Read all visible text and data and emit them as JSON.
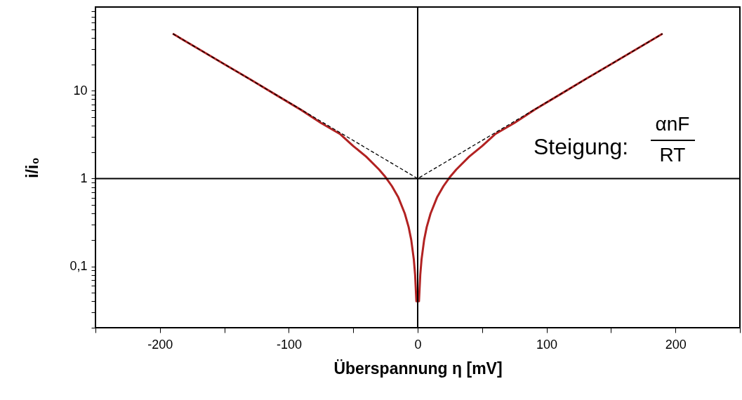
{
  "chart_data": {
    "type": "line",
    "xlabel": "Überspannung η [mV]",
    "ylabel": "i/i₀",
    "log": "y",
    "grid": false,
    "marker": "none",
    "xlim": [
      -250,
      250
    ],
    "xticks": [
      {
        "value": -250,
        "label": null
      },
      -200,
      {
        "value": -150,
        "label": null
      },
      -100,
      {
        "value": -50,
        "label": null
      },
      0,
      {
        "value": 50,
        "label": null
      },
      100,
      {
        "value": 150,
        "label": null
      },
      200,
      {
        "value": 250,
        "label": null
      }
    ],
    "ylim": [
      0.02,
      90
    ],
    "yticks": [
      {
        "value": 0.02,
        "label": null
      },
      {
        "value": 0.03,
        "label": null
      },
      {
        "value": 0.04,
        "label": null
      },
      {
        "value": 0.05,
        "label": null
      },
      {
        "value": 0.06,
        "label": null
      },
      {
        "value": 0.07,
        "label": null
      },
      {
        "value": 0.08,
        "label": null
      },
      {
        "value": 0.09,
        "label": null
      },
      {
        "value": 0.1,
        "label": "0,1"
      },
      {
        "value": 0.2,
        "label": null
      },
      {
        "value": 0.3,
        "label": null
      },
      {
        "value": 0.4,
        "label": null
      },
      {
        "value": 0.5,
        "label": null
      },
      {
        "value": 0.6,
        "label": null
      },
      {
        "value": 0.7,
        "label": null
      },
      {
        "value": 0.8,
        "label": null
      },
      {
        "value": 0.9,
        "label": null
      },
      1,
      {
        "value": 2,
        "label": null
      },
      {
        "value": 3,
        "label": null
      },
      {
        "value": 4,
        "label": null
      },
      {
        "value": 5,
        "label": null
      },
      {
        "value": 6,
        "label": null
      },
      {
        "value": 7,
        "label": null
      },
      {
        "value": 8,
        "label": null
      },
      {
        "value": 9,
        "label": null
      },
      10,
      {
        "value": 20,
        "label": null
      },
      {
        "value": 30,
        "label": null
      },
      {
        "value": 40,
        "label": null
      },
      {
        "value": 50,
        "label": null
      },
      {
        "value": 60,
        "label": null
      },
      {
        "value": 70,
        "label": null
      },
      {
        "value": 80,
        "label": null
      }
    ],
    "series": [
      {
        "color": "#b22222",
        "line_style": "solid",
        "x": [
          -190,
          -170,
          -150,
          -130,
          -110,
          -90,
          -75,
          -60,
          -50,
          -40,
          -30,
          -25,
          -20,
          -15,
          -10,
          -7,
          -5,
          -3,
          -2,
          -1,
          1,
          2,
          3,
          5,
          7,
          10,
          15,
          20,
          25,
          30,
          40,
          50,
          60,
          75,
          90,
          110,
          130,
          150,
          170,
          190
        ],
        "values": [
          44.7,
          30,
          20.1,
          13.5,
          9.0,
          6.0,
          4.3,
          3.2,
          2.35,
          1.78,
          1.27,
          1.04,
          0.82,
          0.61,
          0.4,
          0.28,
          0.2,
          0.12,
          0.08,
          0.04,
          0.04,
          0.08,
          0.12,
          0.2,
          0.28,
          0.4,
          0.61,
          0.82,
          1.04,
          1.27,
          1.78,
          2.35,
          3.2,
          4.3,
          6.0,
          9.0,
          13.5,
          20.1,
          30,
          44.7
        ]
      },
      {
        "color": "#000000",
        "line_style": "dashed",
        "x": [
          -190,
          0,
          190
        ],
        "values": [
          44.7,
          1,
          44.7
        ]
      }
    ],
    "ref_lines": [
      {
        "axis": "y",
        "value": 1,
        "color": "#000000"
      },
      {
        "axis": "x",
        "value": 0,
        "color": "#000000"
      }
    ],
    "annotations": [
      "Steigung:",
      "αnF",
      "RT"
    ]
  }
}
